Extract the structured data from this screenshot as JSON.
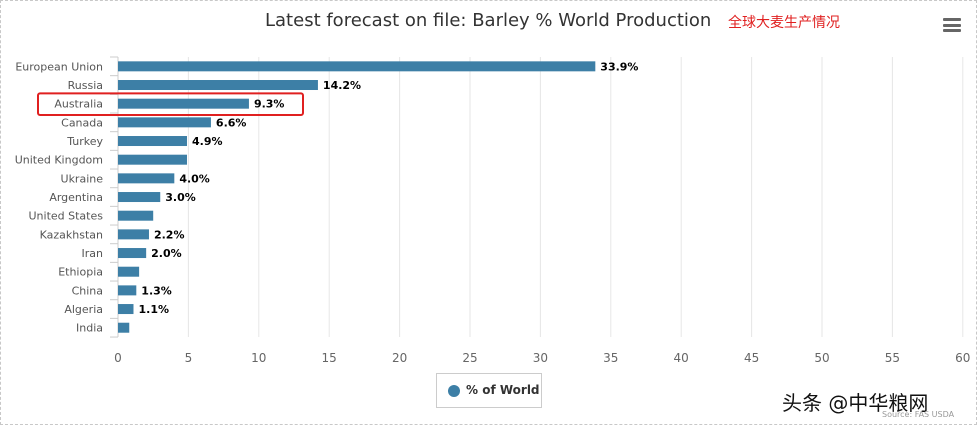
{
  "title": "Latest forecast on file: Barley % World Production",
  "annotation": "全球大麦生产情况",
  "legend_label": "% of World",
  "watermark": "头条 @中华粮网",
  "source": "Source: FAS USDA",
  "colors": {
    "bar": "#3d7fa6",
    "highlight": "#e02020"
  },
  "chart_data": {
    "type": "bar",
    "orientation": "horizontal",
    "title": "Latest forecast on file: Barley % World Production",
    "categories": [
      "European Union",
      "Russia",
      "Australia",
      "Canada",
      "Turkey",
      "United Kingdom",
      "Ukraine",
      "Argentina",
      "United States",
      "Kazakhstan",
      "Iran",
      "Ethiopia",
      "China",
      "Algeria",
      "India"
    ],
    "values": [
      33.9,
      14.2,
      9.3,
      6.6,
      4.9,
      4.9,
      4.0,
      3.0,
      2.5,
      2.2,
      2.0,
      1.5,
      1.3,
      1.1,
      0.8
    ],
    "data_labels": [
      "33.9%",
      "14.2%",
      "9.3%",
      "6.6%",
      "4.9%",
      "",
      "4.0%",
      "3.0%",
      "",
      "2.2%",
      "2.0%",
      "",
      "1.3%",
      "1.1%",
      ""
    ],
    "xlim": [
      0,
      60
    ],
    "xticks": [
      0,
      5,
      10,
      15,
      20,
      25,
      30,
      35,
      40,
      45,
      50,
      55,
      60
    ],
    "grid": true,
    "legend": "bottom-center",
    "series": [
      {
        "name": "% of World"
      }
    ],
    "highlighted_category": "Australia"
  }
}
